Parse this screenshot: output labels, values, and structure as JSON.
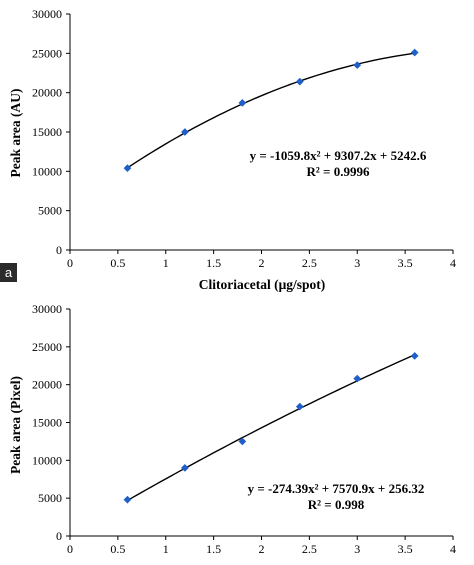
{
  "chart_data": [
    {
      "type": "scatter",
      "panel_label": "a",
      "x": [
        0.6,
        1.2,
        1.8,
        2.4,
        3.0,
        3.6
      ],
      "series": [
        {
          "values": [
            10400,
            15000,
            18700,
            21400,
            23500,
            25100
          ],
          "color": "#1f5fc8"
        }
      ],
      "trendline": {
        "type": "polynomial",
        "a": -1059.8,
        "b": 9307.2,
        "c": 5242.6
      },
      "equation": "y = -1059.8x² + 9307.2x + 5242.6",
      "r_squared": "R² = 0.9996",
      "xlabel": "Clitoriacetal (μg/spot)",
      "ylabel": "Peak area (AU)",
      "xlim": [
        0,
        4
      ],
      "ylim": [
        0,
        30000
      ],
      "xticks": [
        "0",
        "0.5",
        "1",
        "1.5",
        "2",
        "2.5",
        "3",
        "3.5",
        "4"
      ],
      "yticks": [
        "0",
        "5000",
        "10000",
        "15000",
        "20000",
        "25000",
        "30000"
      ],
      "grid": false,
      "legend": "none"
    },
    {
      "type": "scatter",
      "x": [
        0.6,
        1.2,
        1.8,
        2.4,
        3.0,
        3.6
      ],
      "series": [
        {
          "values": [
            4800,
            9000,
            12500,
            17100,
            20800,
            23800
          ],
          "color": "#1f5fc8"
        }
      ],
      "trendline": {
        "type": "polynomial",
        "a": -274.39,
        "b": 7570.9,
        "c": 256.32
      },
      "equation": "y = -274.39x² + 7570.9x + 256.32",
      "r_squared": "R² = 0.998",
      "xlabel": "",
      "ylabel": "Peak area (Pixel)",
      "xlim": [
        0,
        4
      ],
      "ylim": [
        0,
        30000
      ],
      "xticks": [
        "0",
        "0.5",
        "1",
        "1.5",
        "2",
        "2.5",
        "3",
        "3.5",
        "4"
      ],
      "yticks": [
        "0",
        "5000",
        "10000",
        "15000",
        "20000",
        "25000",
        "30000"
      ],
      "grid": false,
      "legend": "none"
    }
  ]
}
